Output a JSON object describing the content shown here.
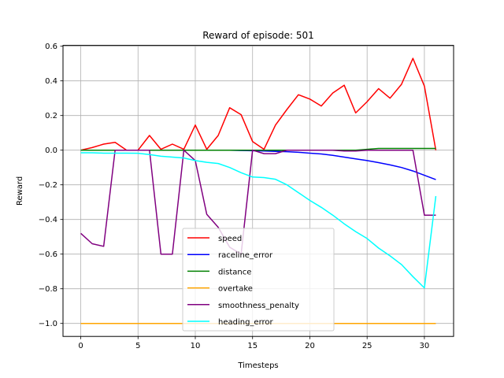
{
  "chart_data": {
    "type": "line",
    "title": "Reward of episode: 501",
    "xlabel": "Timesteps",
    "ylabel": "Reward",
    "xlim": [
      -1.55,
      32.55
    ],
    "ylim": [
      -1.075,
      0.605
    ],
    "xticks": [
      0,
      5,
      10,
      15,
      20,
      25,
      30
    ],
    "yticks": [
      -1.0,
      -0.8,
      -0.6,
      -0.4,
      -0.2,
      0.0,
      0.2,
      0.4,
      0.6
    ],
    "ytick_labels": [
      "−1.0",
      "−0.8",
      "−0.6",
      "−0.4",
      "−0.2",
      "0.0",
      "0.2",
      "0.4",
      "0.6"
    ],
    "grid": true,
    "legend_position": "lower-center",
    "x": [
      0,
      1,
      2,
      3,
      4,
      5,
      6,
      7,
      8,
      9,
      10,
      11,
      12,
      13,
      14,
      15,
      16,
      17,
      18,
      19,
      20,
      21,
      22,
      23,
      24,
      25,
      26,
      27,
      28,
      29,
      30,
      31
    ],
    "series": [
      {
        "name": "speed",
        "color": "#ff0000",
        "values": [
          0.0,
          0.015,
          0.035,
          0.045,
          0.0,
          0.0,
          0.085,
          0.005,
          0.035,
          0.005,
          0.145,
          0.005,
          0.085,
          0.245,
          0.205,
          0.05,
          0.005,
          0.145,
          0.235,
          0.32,
          0.295,
          0.255,
          0.33,
          0.375,
          0.215,
          0.28,
          0.355,
          0.3,
          0.38,
          0.53,
          0.37,
          0.0
        ]
      },
      {
        "name": "raceline_error",
        "color": "#0000ff",
        "values": [
          0.0,
          0.0,
          0.0,
          0.0,
          0.0,
          0.0,
          0.0,
          0.0,
          0.0,
          0.0,
          0.0,
          0.0,
          0.0,
          0.0,
          -0.002,
          -0.003,
          -0.005,
          -0.007,
          -0.009,
          -0.012,
          -0.017,
          -0.022,
          -0.03,
          -0.04,
          -0.05,
          -0.06,
          -0.072,
          -0.085,
          -0.1,
          -0.12,
          -0.145,
          -0.17
        ]
      },
      {
        "name": "distance",
        "color": "#008000",
        "values": [
          0.0,
          0.0,
          0.0,
          0.0,
          0.0,
          0.0,
          0.0,
          0.0,
          0.0,
          0.0,
          0.0,
          0.0,
          0.0,
          0.0,
          0.0,
          0.0,
          0.0,
          0.0,
          0.0,
          0.0,
          0.0,
          0.0,
          0.0,
          0.0,
          0.0,
          0.005,
          0.01,
          0.01,
          0.01,
          0.01,
          0.01,
          0.01
        ]
      },
      {
        "name": "overtake",
        "color": "#ffa500",
        "values": [
          -1,
          -1,
          -1,
          -1,
          -1,
          -1,
          -1,
          -1,
          -1,
          -1,
          -1,
          -1,
          -1,
          -1,
          -1,
          -1,
          -1,
          -1,
          -1,
          -1,
          -1,
          -1,
          -1,
          -1,
          -1,
          -1,
          -1,
          -1,
          -1,
          -1,
          -1,
          -1
        ]
      },
      {
        "name": "smoothness_penalty",
        "color": "#800080",
        "values": [
          -0.48,
          -0.54,
          -0.555,
          0.0,
          0.0,
          0.0,
          0.0,
          -0.6,
          -0.6,
          0.0,
          -0.06,
          -0.37,
          -0.445,
          -0.56,
          -0.6,
          0.0,
          -0.02,
          -0.02,
          0.0,
          0.0,
          0.0,
          0.0,
          0.0,
          -0.005,
          -0.005,
          0.0,
          0.0,
          0.0,
          0.0,
          0.0,
          -0.375,
          -0.375
        ]
      },
      {
        "name": "heading_error",
        "color": "#00ffff",
        "values": [
          -0.015,
          -0.015,
          -0.017,
          -0.017,
          -0.017,
          -0.018,
          -0.025,
          -0.035,
          -0.04,
          -0.045,
          -0.06,
          -0.07,
          -0.077,
          -0.1,
          -0.13,
          -0.155,
          -0.158,
          -0.168,
          -0.2,
          -0.245,
          -0.29,
          -0.33,
          -0.375,
          -0.425,
          -0.47,
          -0.51,
          -0.565,
          -0.61,
          -0.66,
          -0.73,
          -0.795,
          -0.265
        ]
      }
    ]
  }
}
